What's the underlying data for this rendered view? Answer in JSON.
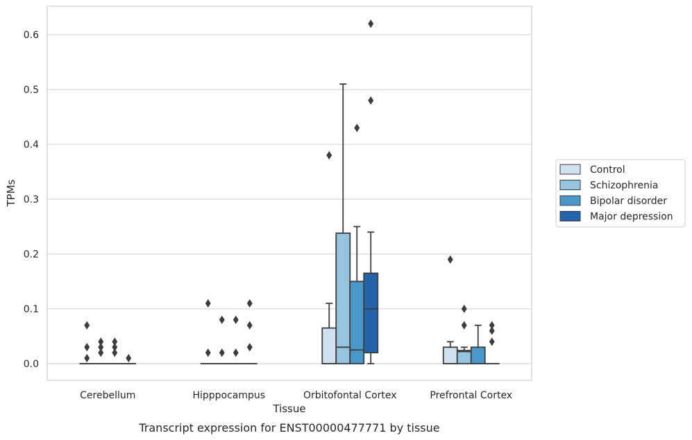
{
  "chart_data": {
    "type": "box",
    "title": "",
    "xlabel": "Tissue",
    "ylabel": "TPMs",
    "caption": "Transcript expression for ENST00000477771 by tissue",
    "ylim": [
      -0.03,
      0.65
    ],
    "yticks": [
      0.0,
      0.1,
      0.2,
      0.3,
      0.4,
      0.5,
      0.6
    ],
    "ytick_labels": [
      "0.0",
      "0.1",
      "0.2",
      "0.3",
      "0.4",
      "0.5",
      "0.6"
    ],
    "grid": true,
    "legend_position": "right",
    "categories": [
      "Cerebellum",
      "Hipppocampus",
      "Orbitofontal Cortex",
      "Prefrontal Cortex"
    ],
    "series": [
      {
        "name": "Control",
        "color": "#d0e1f2",
        "boxes": [
          {
            "q1": 0,
            "median": 0,
            "q3": 0,
            "whisker_low": 0,
            "whisker_high": 0,
            "outliers": [
              0.07,
              0.03,
              0.01
            ]
          },
          {
            "q1": 0,
            "median": 0,
            "q3": 0,
            "whisker_low": 0,
            "whisker_high": 0,
            "outliers": [
              0.11,
              0.02
            ]
          },
          {
            "q1": 0,
            "median": 0,
            "q3": 0.065,
            "whisker_low": 0,
            "whisker_high": 0.11,
            "outliers": [
              0.38
            ]
          },
          {
            "q1": 0,
            "median": 0,
            "q3": 0.03,
            "whisker_low": 0,
            "whisker_high": 0.04,
            "outliers": [
              0.19
            ]
          }
        ]
      },
      {
        "name": "Schizophrenia",
        "color": "#94c4df",
        "boxes": [
          {
            "q1": 0,
            "median": 0,
            "q3": 0,
            "whisker_low": 0,
            "whisker_high": 0,
            "outliers": [
              0.04,
              0.03,
              0.02
            ]
          },
          {
            "q1": 0,
            "median": 0,
            "q3": 0,
            "whisker_low": 0,
            "whisker_high": 0,
            "outliers": [
              0.08,
              0.02
            ]
          },
          {
            "q1": 0,
            "median": 0.03,
            "q3": 0.238,
            "whisker_low": 0,
            "whisker_high": 0.51,
            "outliers": []
          },
          {
            "q1": 0,
            "median": 0.022,
            "q3": 0.024,
            "whisker_low": 0,
            "whisker_high": 0.03,
            "outliers": [
              0.1,
              0.07
            ]
          }
        ]
      },
      {
        "name": "Bipolar disorder",
        "color": "#4a98c9",
        "boxes": [
          {
            "q1": 0,
            "median": 0,
            "q3": 0,
            "whisker_low": 0,
            "whisker_high": 0,
            "outliers": [
              0.04,
              0.03,
              0.02
            ]
          },
          {
            "q1": 0,
            "median": 0,
            "q3": 0,
            "whisker_low": 0,
            "whisker_high": 0,
            "outliers": [
              0.08,
              0.02
            ]
          },
          {
            "q1": 0,
            "median": 0.025,
            "q3": 0.15,
            "whisker_low": 0,
            "whisker_high": 0.25,
            "outliers": [
              0.43
            ]
          },
          {
            "q1": 0,
            "median": 0,
            "q3": 0.03,
            "whisker_low": 0,
            "whisker_high": 0.07,
            "outliers": []
          }
        ]
      },
      {
        "name": "Major depression",
        "color": "#2364aa",
        "boxes": [
          {
            "q1": 0,
            "median": 0,
            "q3": 0,
            "whisker_low": 0,
            "whisker_high": 0,
            "outliers": [
              0.01
            ]
          },
          {
            "q1": 0,
            "median": 0,
            "q3": 0,
            "whisker_low": 0,
            "whisker_high": 0,
            "outliers": [
              0.11,
              0.07,
              0.03
            ]
          },
          {
            "q1": 0.02,
            "median": 0.1,
            "q3": 0.165,
            "whisker_low": 0,
            "whisker_high": 0.24,
            "outliers": [
              0.62,
              0.48
            ]
          },
          {
            "q1": 0,
            "median": 0,
            "q3": 0,
            "whisker_low": 0,
            "whisker_high": 0,
            "outliers": [
              0.07,
              0.06,
              0.04
            ]
          }
        ]
      }
    ]
  }
}
